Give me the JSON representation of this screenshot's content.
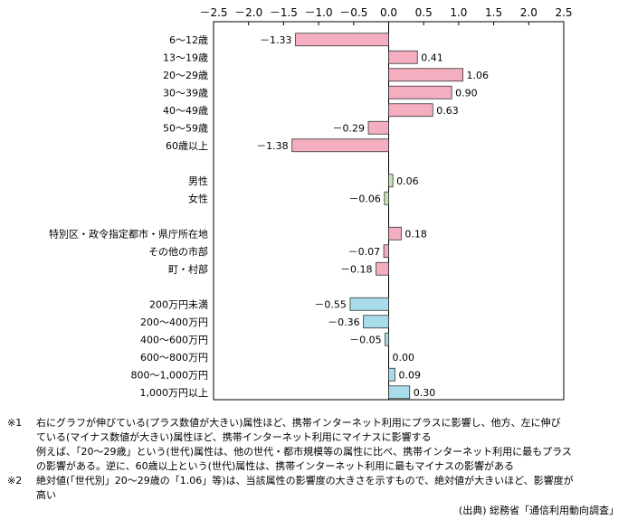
{
  "chart_data": {
    "type": "bar",
    "orientation": "horizontal",
    "xlim": [
      -2.5,
      2.5
    ],
    "xticks": [
      "－2.5",
      "－2.0",
      "－1.5",
      "－1.0",
      "－0.5",
      "0.0",
      "0.5",
      "1.0",
      "1.5",
      "2.0",
      "2.5"
    ],
    "grid": false,
    "groups": [
      {
        "name": "",
        "color": "#f4aebf",
        "rows": [
          {
            "label": "6～12歳",
            "value": -1.33,
            "value_label": "－1.33"
          },
          {
            "label": "13～19歳",
            "value": 0.41,
            "value_label": "0.41"
          },
          {
            "label": "20～29歳",
            "value": 1.06,
            "value_label": "1.06"
          },
          {
            "label": "30～39歳",
            "value": 0.9,
            "value_label": "0.90"
          },
          {
            "label": "40～49歳",
            "value": 0.63,
            "value_label": "0.63"
          },
          {
            "label": "50～59歳",
            "value": -0.29,
            "value_label": "－0.29"
          },
          {
            "label": "60歳以上",
            "value": -1.38,
            "value_label": "－1.38"
          }
        ]
      },
      {
        "name": "",
        "color": "#c6e8b8",
        "rows": [
          {
            "label": "男性",
            "value": 0.06,
            "value_label": "0.06"
          },
          {
            "label": "女性",
            "value": -0.06,
            "value_label": "－0.06"
          }
        ]
      },
      {
        "name": "",
        "color": "#f4aebf",
        "rows": [
          {
            "label": "特別区・政令指定都市・県庁所在地",
            "value": 0.18,
            "value_label": "0.18"
          },
          {
            "label": "その他の市部",
            "value": -0.07,
            "value_label": "－0.07"
          },
          {
            "label": "町・村部",
            "value": -0.18,
            "value_label": "－0.18"
          }
        ]
      },
      {
        "name": "",
        "color": "#a8dceb",
        "rows": [
          {
            "label": "200万円未満",
            "value": -0.55,
            "value_label": "－0.55"
          },
          {
            "label": "200～400万円",
            "value": -0.36,
            "value_label": "－0.36"
          },
          {
            "label": "400～600万円",
            "value": -0.05,
            "value_label": "－0.05"
          },
          {
            "label": "600～800万円",
            "value": 0.0,
            "value_label": "0.00"
          },
          {
            "label": "800～1,000万円",
            "value": 0.09,
            "value_label": "0.09"
          },
          {
            "label": "1,000万円以上",
            "value": 0.3,
            "value_label": "0.30"
          }
        ]
      }
    ]
  },
  "notes": [
    {
      "mark": "※1",
      "lines": [
        "右にグラフが伸びている(プラス数値が大きい)属性ほど、携帯インターネット利用にプラスに影響し、他方、左に伸び",
        "ている(マイナス数値が大きい)属性ほど、携帯インターネット利用にマイナスに影響する",
        "例えば、「20～29歳」という(世代)属性は、他の世代・都市規模等の属性に比べ、携帯インターネット利用に最もプラス",
        "の影響がある。逆に、60歳以上という(世代)属性は、携帯インターネット利用に最もマイナスの影響がある"
      ]
    },
    {
      "mark": "※2",
      "lines": [
        "絶対値(「世代別」20～29歳の「1.06」等)は、当該属性の影響度の大きさを示すもので、絶対値が大きいほど、影響度が",
        "高い"
      ]
    }
  ],
  "source": "(出典) 総務省「通信利用動向調査」"
}
